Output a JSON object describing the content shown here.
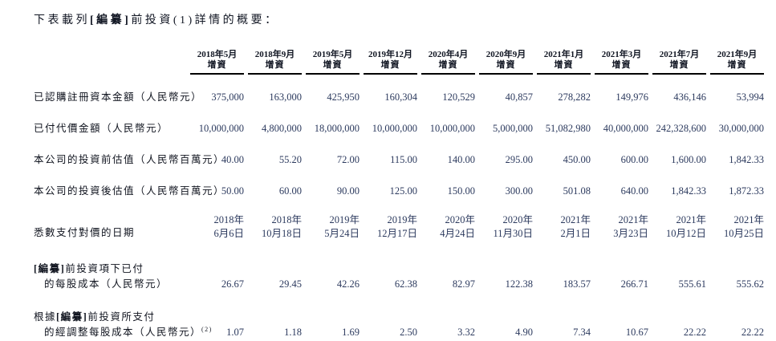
{
  "title": {
    "prefix": "下表載列",
    "redacted": "[編纂]",
    "suffix": "前投資(1)詳情的概要："
  },
  "table": {
    "col_subheader": "增資",
    "col_headers": [
      "2018年5月",
      "2018年9月",
      "2019年5月",
      "2019年12月",
      "2020年4月",
      "2020年9月",
      "2021年1月",
      "2021年3月",
      "2021年7月",
      "2021年9月"
    ],
    "rows": [
      {
        "label": [
          [
            {
              "t": "已認購註冊資本金額（人民幣元）",
              "b": false
            }
          ]
        ],
        "values": [
          "375,000",
          "163,000",
          "425,950",
          "160,304",
          "120,529",
          "40,857",
          "278,282",
          "149,976",
          "436,146",
          "53,994"
        ]
      },
      {
        "label": [
          [
            {
              "t": "已付代價金額（人民幣元）",
              "b": false
            }
          ]
        ],
        "values": [
          "10,000,000",
          "4,800,000",
          "18,000,000",
          "10,000,000",
          "10,000,000",
          "5,000,000",
          "51,082,980",
          "40,000,000",
          "242,328,600",
          "30,000,000"
        ]
      },
      {
        "label": [
          [
            {
              "t": "本公司的投資前估值（人民幣百萬元）",
              "b": false
            }
          ]
        ],
        "values": [
          "40.00",
          "55.20",
          "72.00",
          "115.00",
          "140.00",
          "295.00",
          "450.00",
          "600.00",
          "1,600.00",
          "1,842.33"
        ]
      },
      {
        "label": [
          [
            {
              "t": "本公司的投資後估值（人民幣百萬元）",
              "b": false
            }
          ]
        ],
        "values": [
          "50.00",
          "60.00",
          "90.00",
          "125.00",
          "150.00",
          "300.00",
          "501.08",
          "640.00",
          "1,842.33",
          "1,872.33"
        ]
      },
      {
        "label": [
          [
            {
              "t": "悉數支付對價的日期",
              "b": false
            }
          ]
        ],
        "values": [
          {
            "l1": "2018年",
            "l2": "6月6日"
          },
          {
            "l1": "2018年",
            "l2": "10月18日"
          },
          {
            "l1": "2019年",
            "l2": "5月24日"
          },
          {
            "l1": "2019年",
            "l2": "12月17日"
          },
          {
            "l1": "2020年",
            "l2": "4月24日"
          },
          {
            "l1": "2020年",
            "l2": "11月30日"
          },
          {
            "l1": "2021年",
            "l2": "2月1日"
          },
          {
            "l1": "2021年",
            "l2": "3月23日"
          },
          {
            "l1": "2021年",
            "l2": "10月12日"
          },
          {
            "l1": "2021年",
            "l2": "10月25日"
          }
        ]
      },
      {
        "label": [
          [
            {
              "t": "[編纂]",
              "b": true
            },
            {
              "t": "前投資項下已付",
              "b": false
            }
          ],
          [
            {
              "t": "的每股成本（人民幣元）",
              "b": false
            }
          ]
        ],
        "values": [
          "26.67",
          "29.45",
          "42.26",
          "62.38",
          "82.97",
          "122.38",
          "183.57",
          "266.71",
          "555.61",
          "555.62"
        ]
      },
      {
        "label": [
          [
            {
              "t": "根據",
              "b": false
            },
            {
              "t": "[編纂]",
              "b": true
            },
            {
              "t": "前投資所支付",
              "b": false
            }
          ],
          [
            {
              "t": "的經調整每股成本（人民幣元）",
              "b": false
            },
            {
              "t": "(2)",
              "b": false,
              "sup": true
            }
          ]
        ],
        "values": [
          "1.07",
          "1.18",
          "1.69",
          "2.50",
          "3.32",
          "4.90",
          "7.34",
          "10.67",
          "22.22",
          "22.22"
        ]
      }
    ]
  }
}
